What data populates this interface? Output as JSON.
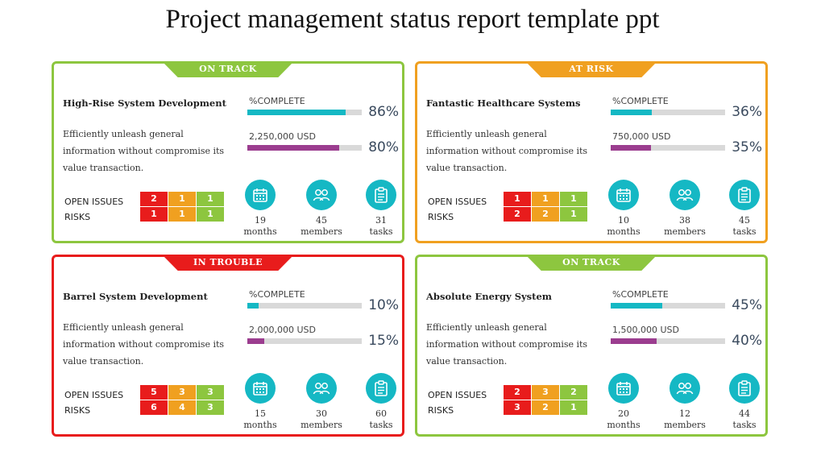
{
  "title": "Project management status report template ppt",
  "colors": {
    "on_track": "#8dc63f",
    "at_risk": "#f0a020",
    "in_trouble": "#e81c1c",
    "teal": "#15b8c4",
    "purple": "#9b3d8f"
  },
  "cards": [
    {
      "status": "ON TRACK",
      "status_color": "#8dc63f",
      "project": "High-Rise System Development",
      "description": "Efficiently unleash general information without compromise its value transaction.",
      "complete_label": "%COMPLETE",
      "complete_pct": 86,
      "complete_pct_text": "86%",
      "budget_label": "2,250,000 USD",
      "budget_pct": 80,
      "budget_pct_text": "80%",
      "open_issues_label": "OPEN ISSUES",
      "risks_label": "RISKS",
      "open_issues": [
        "2",
        "1",
        "1"
      ],
      "risks": [
        "1",
        "1",
        "1"
      ],
      "stats": [
        {
          "icon": "calendar-icon",
          "value": "19",
          "unit": "months"
        },
        {
          "icon": "members-icon",
          "value": "45",
          "unit": "members"
        },
        {
          "icon": "clipboard-icon",
          "value": "31",
          "unit": "tasks"
        }
      ]
    },
    {
      "status": "AT RISK",
      "status_color": "#f0a020",
      "project": "Fantastic Healthcare Systems",
      "description": "Efficiently unleash general information without compromise its value transaction.",
      "complete_label": "%COMPLETE",
      "complete_pct": 36,
      "complete_pct_text": "36%",
      "budget_label": "750,000 USD",
      "budget_pct": 35,
      "budget_pct_text": "35%",
      "open_issues_label": "OPEN ISSUES",
      "risks_label": "RISKS",
      "open_issues": [
        "1",
        "1",
        "1"
      ],
      "risks": [
        "2",
        "2",
        "1"
      ],
      "stats": [
        {
          "icon": "calendar-icon",
          "value": "10",
          "unit": "months"
        },
        {
          "icon": "members-icon",
          "value": "38",
          "unit": "members"
        },
        {
          "icon": "clipboard-icon",
          "value": "45",
          "unit": "tasks"
        }
      ]
    },
    {
      "status": "IN TROUBLE",
      "status_color": "#e81c1c",
      "project": "Barrel System Development",
      "description": "Efficiently unleash general information without compromise its value transaction.",
      "complete_label": "%COMPLETE",
      "complete_pct": 10,
      "complete_pct_text": "10%",
      "budget_label": "2,000,000 USD",
      "budget_pct": 15,
      "budget_pct_text": "15%",
      "open_issues_label": "OPEN ISSUES",
      "risks_label": "RISKS",
      "open_issues": [
        "5",
        "3",
        "3"
      ],
      "risks": [
        "6",
        "4",
        "3"
      ],
      "stats": [
        {
          "icon": "calendar-icon",
          "value": "15",
          "unit": "months"
        },
        {
          "icon": "members-icon",
          "value": "30",
          "unit": "members"
        },
        {
          "icon": "clipboard-icon",
          "value": "60",
          "unit": "tasks"
        }
      ]
    },
    {
      "status": "ON TRACK",
      "status_color": "#8dc63f",
      "project": "Absolute Energy System",
      "description": "Efficiently unleash general information without compromise its value transaction.",
      "complete_label": "%COMPLETE",
      "complete_pct": 45,
      "complete_pct_text": "45%",
      "budget_label": "1,500,000 USD",
      "budget_pct": 40,
      "budget_pct_text": "40%",
      "open_issues_label": "OPEN ISSUES",
      "risks_label": "RISKS",
      "open_issues": [
        "2",
        "3",
        "2"
      ],
      "risks": [
        "3",
        "2",
        "1"
      ],
      "stats": [
        {
          "icon": "calendar-icon",
          "value": "20",
          "unit": "months"
        },
        {
          "icon": "members-icon",
          "value": "12",
          "unit": "members"
        },
        {
          "icon": "clipboard-icon",
          "value": "44",
          "unit": "tasks"
        }
      ]
    }
  ]
}
